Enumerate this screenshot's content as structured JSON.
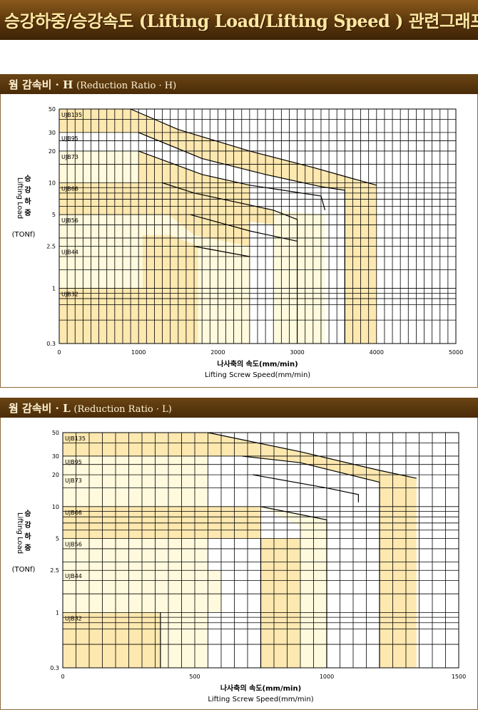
{
  "page": {
    "title": "승강하중/승강속도 (Lifting Load/Lifting Speed ) 관련그래프"
  },
  "colors": {
    "band_fill": "#fde8b0",
    "band_edge": "#f9d98a",
    "light_fill": "#fffadd",
    "grid": "#000000",
    "header_brown": "#5a360c"
  },
  "chart_data": [
    {
      "type": "area",
      "section_prefix": "웜 감속비 · ",
      "section_ratio": "H",
      "section_en": "(Reduction Ratio · H)",
      "xlabel_ko": "나사축의 속도(mm/min)",
      "xlabel_en": "Lifting Screw Speed(mm/min)",
      "ylabel_ko": [
        "승",
        "강",
        "하",
        "중"
      ],
      "ylabel_en": "Lifting Load",
      "ylabel_unit": "(TONf)",
      "xlim": [
        0,
        5000
      ],
      "ylim": [
        0.3,
        50
      ],
      "y_scale": "log",
      "x_ticks": [
        "0",
        "1000",
        "2000",
        "3000",
        "4000",
        "5000"
      ],
      "y_ticks": [
        "50",
        "30",
        "20",
        "10",
        "5",
        "2.5",
        "1",
        "0.3"
      ],
      "series": [
        {
          "name": "UJB135",
          "max_load": 50,
          "max_speed": 4000
        },
        {
          "name": "UJB95",
          "max_load": 30
        },
        {
          "name": "UJB73",
          "max_load": 20,
          "max_speed": 3600
        },
        {
          "name": "UJB66",
          "max_load": 10,
          "max_speed": 3350
        },
        {
          "name": "UJB56",
          "max_load": 5,
          "max_speed": 3000
        },
        {
          "name": "UJB44",
          "max_load": 2.5,
          "max_speed": 2400
        },
        {
          "name": "UJB32",
          "max_load": 1,
          "max_speed": 1750
        }
      ]
    },
    {
      "type": "area",
      "section_prefix": "웜 감속비 · ",
      "section_ratio": "L",
      "section_en": "(Reduction Ratio · L)",
      "xlabel_ko": "나사축의 속도(mm/min)",
      "xlabel_en": "Lifting Screw Speed(mm/min)",
      "ylabel_ko": [
        "승",
        "강",
        "하",
        "중"
      ],
      "ylabel_en": "Lifting Load",
      "ylabel_unit": "(TONf)",
      "xlim": [
        0,
        1500
      ],
      "ylim": [
        0.3,
        50
      ],
      "y_scale": "log",
      "x_ticks": [
        "0",
        "500",
        "1000",
        "1500"
      ],
      "y_ticks": [
        "50",
        "30",
        "20",
        "10",
        "5",
        "2.5",
        "1",
        "0.3"
      ],
      "series": [
        {
          "name": "UJB135",
          "max_load": 50,
          "max_speed": 1340
        },
        {
          "name": "UJB95",
          "max_load": 30
        },
        {
          "name": "UJB73",
          "max_load": 20,
          "max_speed": 1120
        },
        {
          "name": "UJB66",
          "max_load": 10
        },
        {
          "name": "UJB56",
          "max_load": 5,
          "max_speed": 900
        },
        {
          "name": "UJB44",
          "max_load": 2.5,
          "max_speed": 600
        },
        {
          "name": "UJB32",
          "max_load": 1,
          "max_speed": 370
        }
      ]
    }
  ]
}
